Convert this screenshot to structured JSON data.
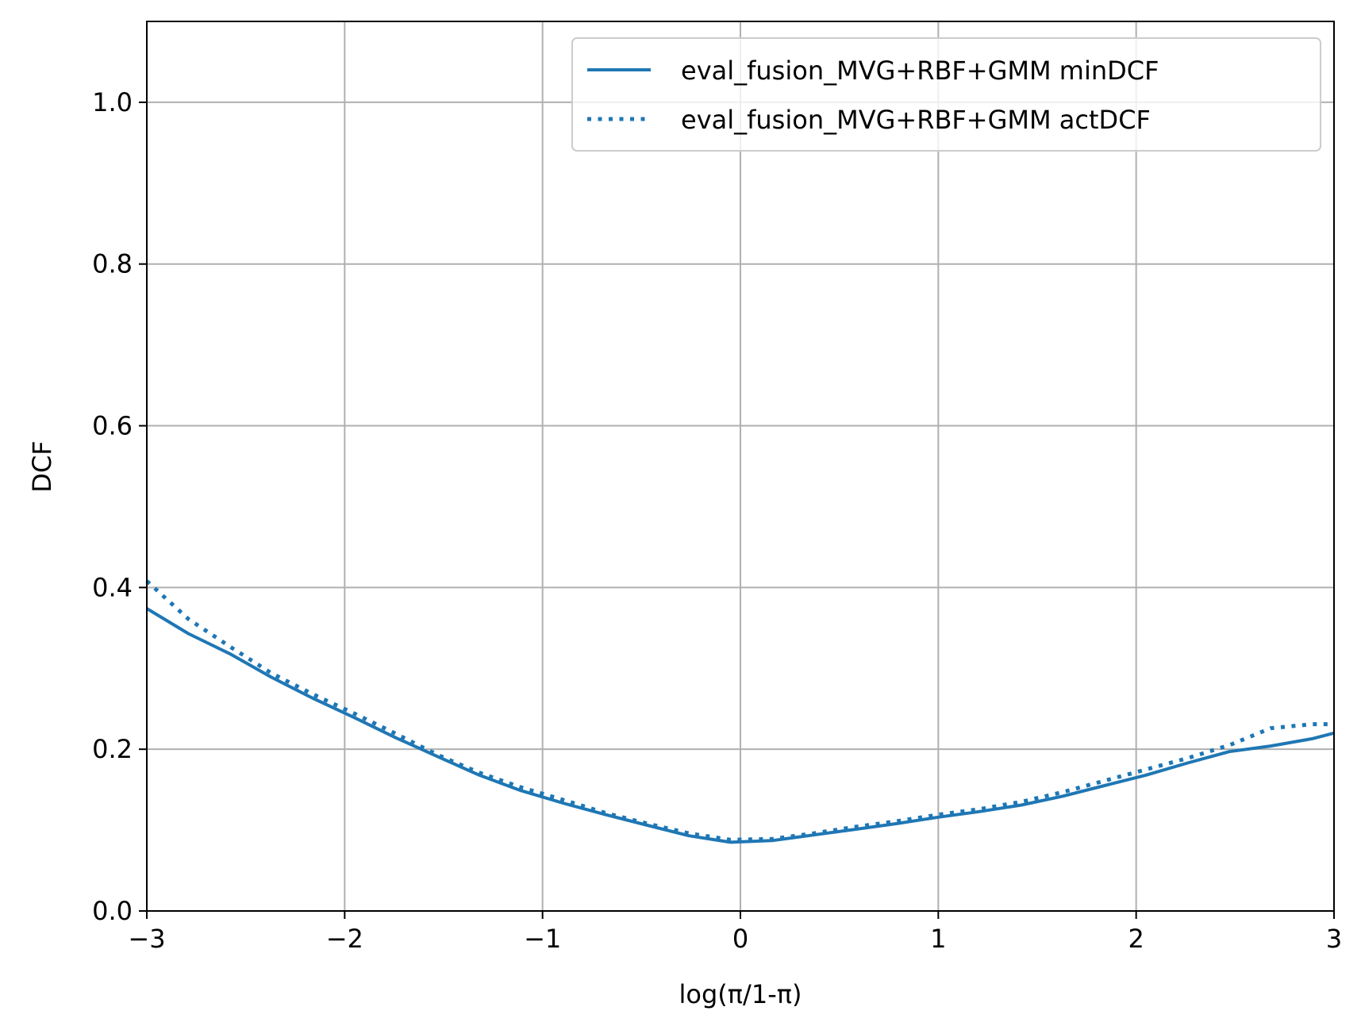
{
  "chart_data": {
    "type": "line",
    "title": "",
    "xlabel": "log(π/1-π)",
    "ylabel": "DCF",
    "xlim": [
      -3,
      3
    ],
    "ylim": [
      0,
      1.1
    ],
    "xticks": [
      {
        "value": -3,
        "label": "−3"
      },
      {
        "value": -2,
        "label": "−2"
      },
      {
        "value": -1,
        "label": "−1"
      },
      {
        "value": 0,
        "label": "0"
      },
      {
        "value": 1,
        "label": "1"
      },
      {
        "value": 2,
        "label": "2"
      },
      {
        "value": 3,
        "label": "3"
      }
    ],
    "yticks": [
      {
        "value": 0.0,
        "label": "0.0"
      },
      {
        "value": 0.2,
        "label": "0.2"
      },
      {
        "value": 0.4,
        "label": "0.4"
      },
      {
        "value": 0.6,
        "label": "0.6"
      },
      {
        "value": 0.8,
        "label": "0.8"
      },
      {
        "value": 1.0,
        "label": "1.0"
      }
    ],
    "grid": true,
    "legend_position": "top-right",
    "x": [
      -3.0,
      -2.79,
      -2.58,
      -2.37,
      -2.16,
      -1.95,
      -1.74,
      -1.53,
      -1.32,
      -1.11,
      -0.89,
      -0.68,
      -0.47,
      -0.26,
      -0.05,
      0.16,
      0.37,
      0.58,
      0.79,
      1.0,
      1.21,
      1.42,
      1.63,
      1.84,
      2.05,
      2.26,
      2.47,
      2.68,
      2.89,
      3.0
    ],
    "series": [
      {
        "name": "eval_fusion_MVG+RBF+GMM minDCF",
        "color": "#1f77b4",
        "style": "solid",
        "values": [
          0.374,
          0.343,
          0.318,
          0.289,
          0.263,
          0.239,
          0.214,
          0.191,
          0.168,
          0.149,
          0.133,
          0.119,
          0.106,
          0.093,
          0.085,
          0.087,
          0.094,
          0.101,
          0.108,
          0.116,
          0.123,
          0.131,
          0.142,
          0.155,
          0.168,
          0.183,
          0.197,
          0.204,
          0.213,
          0.22
        ]
      },
      {
        "name": "eval_fusion_MVG+RBF+GMM actDCF",
        "color": "#1f77b4",
        "style": "dotted",
        "values": [
          0.408,
          0.361,
          0.327,
          0.294,
          0.268,
          0.244,
          0.219,
          0.193,
          0.171,
          0.153,
          0.137,
          0.121,
          0.108,
          0.096,
          0.088,
          0.089,
          0.096,
          0.104,
          0.111,
          0.119,
          0.126,
          0.135,
          0.147,
          0.161,
          0.175,
          0.189,
          0.205,
          0.226,
          0.231,
          0.231
        ]
      }
    ]
  }
}
